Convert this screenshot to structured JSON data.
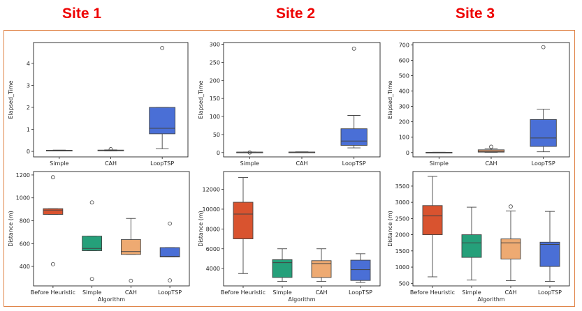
{
  "titles": [
    "Site 1",
    "Site 2",
    "Site 3"
  ],
  "colors": {
    "title": "#ee0000",
    "frame": "#e0854a",
    "elapsed": [
      "#dcdcdc",
      "#dcdcdc",
      "#e7a072",
      "#4a6fd6"
    ],
    "distance": [
      "#d9532f",
      "#25a07a",
      "#eeaa72",
      "#4a6fd6"
    ]
  },
  "chart_data": [
    {
      "type": "box",
      "panel": "Site 1 top",
      "categories": [
        "Simple",
        "CAH",
        "LoopTSP"
      ],
      "ylabel": "Elapsed_Time",
      "xlabel": "",
      "ylim": [
        -0.25,
        4.95
      ],
      "yticks": [
        0,
        1,
        2,
        3,
        4
      ],
      "boxes": [
        {
          "whislo": 0.02,
          "q1": 0.03,
          "med": 0.04,
          "q3": 0.05,
          "whishi": 0.06,
          "fliers": []
        },
        {
          "whislo": 0.02,
          "q1": 0.03,
          "med": 0.04,
          "q3": 0.06,
          "whishi": 0.07,
          "fliers": [
            0.1
          ]
        },
        {
          "whislo": 0.12,
          "q1": 0.8,
          "med": 1.05,
          "q3": 2.0,
          "whishi": 2.0,
          "fliers": [
            4.7
          ]
        }
      ]
    },
    {
      "type": "box",
      "panel": "Site 2 top",
      "categories": [
        "Simple",
        "CAH",
        "LoopTSP"
      ],
      "ylabel": "Elapsed_Time",
      "xlabel": "",
      "ylim": [
        -12,
        305
      ],
      "yticks": [
        0,
        50,
        100,
        150,
        200,
        250,
        300
      ],
      "boxes": [
        {
          "whislo": 0.3,
          "q1": 0.5,
          "med": 1,
          "q3": 1.3,
          "whishi": 1.7,
          "fliers": [
            0.2
          ]
        },
        {
          "whislo": 0.3,
          "q1": 0.6,
          "med": 1,
          "q3": 1.5,
          "whishi": 2,
          "fliers": []
        },
        {
          "whislo": 13,
          "q1": 20,
          "med": 32,
          "q3": 66,
          "whishi": 103,
          "fliers": [
            288
          ]
        }
      ]
    },
    {
      "type": "box",
      "panel": "Site 3 top",
      "categories": [
        "Simple",
        "CAH",
        "LoopTSP"
      ],
      "ylabel": "Elapsed_Time",
      "xlabel": "",
      "ylim": [
        -28,
        715
      ],
      "yticks": [
        0,
        100,
        200,
        300,
        400,
        500,
        600,
        700
      ],
      "boxes": [
        {
          "whislo": 0.5,
          "q1": 1,
          "med": 1.5,
          "q3": 2,
          "whishi": 2.5,
          "fliers": []
        },
        {
          "whislo": 2,
          "q1": 3,
          "med": 8,
          "q3": 18,
          "whishi": 25,
          "fliers": [
            38
          ]
        },
        {
          "whislo": 5,
          "q1": 40,
          "med": 95,
          "q3": 215,
          "whishi": 282,
          "fliers": [
            685
          ]
        }
      ]
    },
    {
      "type": "box",
      "panel": "Site 1 bottom",
      "categories": [
        "Before Heuristic",
        "Simple",
        "CAH",
        "LoopTSP"
      ],
      "ylabel": "Distance (m)",
      "xlabel": "Algorithm",
      "ylim": [
        230,
        1230
      ],
      "yticks": [
        400,
        600,
        800,
        1000,
        1200
      ],
      "boxes": [
        {
          "whislo": 855,
          "q1": 855,
          "med": 893,
          "q3": 905,
          "whishi": 905,
          "fliers": [
            1180,
            420
          ]
        },
        {
          "whislo": 538,
          "q1": 538,
          "med": 558,
          "q3": 665,
          "whishi": 665,
          "fliers": [
            960,
            290
          ]
        },
        {
          "whislo": 505,
          "q1": 505,
          "med": 530,
          "q3": 635,
          "whishi": 820,
          "fliers": [
            275
          ]
        },
        {
          "whislo": 483,
          "q1": 483,
          "med": 488,
          "q3": 565,
          "whishi": 565,
          "fliers": [
            775,
            278
          ]
        }
      ]
    },
    {
      "type": "box",
      "panel": "Site 2 bottom",
      "categories": [
        "Before Heuristic",
        "Simple",
        "CAH",
        "LoopTSP"
      ],
      "ylabel": "Distance (m)",
      "xlabel": "Algorithm",
      "ylim": [
        2250,
        13800
      ],
      "yticks": [
        4000,
        6000,
        8000,
        10000,
        12000
      ],
      "boxes": [
        {
          "whislo": 3500,
          "q1": 7000,
          "med": 9500,
          "q3": 10700,
          "whishi": 13200,
          "fliers": []
        },
        {
          "whislo": 2700,
          "q1": 3100,
          "med": 4600,
          "q3": 4900,
          "whishi": 6000,
          "fliers": []
        },
        {
          "whislo": 2700,
          "q1": 3100,
          "med": 4500,
          "q3": 4800,
          "whishi": 6000,
          "fliers": []
        },
        {
          "whislo": 2600,
          "q1": 2800,
          "med": 3900,
          "q3": 4850,
          "whishi": 5500,
          "fliers": []
        }
      ]
    },
    {
      "type": "box",
      "panel": "Site 3 bottom",
      "categories": [
        "Before Heuristic",
        "Simple",
        "CAH",
        "LoopTSP"
      ],
      "ylabel": "Distance (m)",
      "xlabel": "Algorithm",
      "ylim": [
        420,
        3950
      ],
      "yticks": [
        500,
        1000,
        1500,
        2000,
        2500,
        3000,
        3500
      ],
      "boxes": [
        {
          "whislo": 700,
          "q1": 2000,
          "med": 2580,
          "q3": 2900,
          "whishi": 3800,
          "fliers": []
        },
        {
          "whislo": 600,
          "q1": 1300,
          "med": 1750,
          "q3": 2000,
          "whishi": 2850,
          "fliers": []
        },
        {
          "whislo": 580,
          "q1": 1250,
          "med": 1750,
          "q3": 1870,
          "whishi": 2730,
          "fliers": [
            2870
          ]
        },
        {
          "whislo": 560,
          "q1": 1020,
          "med": 1700,
          "q3": 1770,
          "whishi": 2720,
          "fliers": []
        }
      ]
    }
  ]
}
